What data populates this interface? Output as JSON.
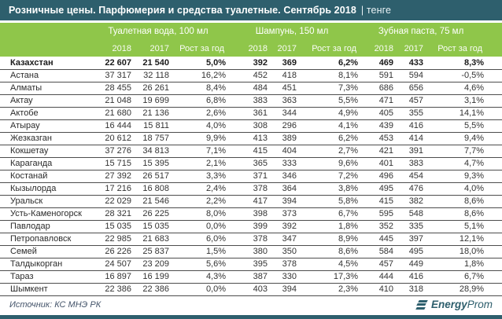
{
  "header": {
    "title_main": "Розничные цены. Парфюмерия и средства туалетные. Сентябрь 2018",
    "title_unit": "| тенге"
  },
  "table": {
    "groups": [
      "Туалетная вода, 100 мл",
      "Шампунь, 150 мл",
      "Зубная паста, 75 мл"
    ],
    "sub": [
      "2018",
      "2017",
      "Рост за год"
    ],
    "rows": [
      {
        "name": "Казахстан",
        "bold": true,
        "values": [
          "22 607",
          "21 540",
          "5,0%",
          "392",
          "369",
          "6,2%",
          "469",
          "433",
          "8,3%"
        ]
      },
      {
        "name": "Астана",
        "bold": false,
        "values": [
          "37 317",
          "32 118",
          "16,2%",
          "452",
          "418",
          "8,1%",
          "591",
          "594",
          "-0,5%"
        ]
      },
      {
        "name": "Алматы",
        "bold": false,
        "values": [
          "28 455",
          "26 261",
          "8,4%",
          "484",
          "451",
          "7,3%",
          "686",
          "656",
          "4,6%"
        ]
      },
      {
        "name": "Актау",
        "bold": false,
        "values": [
          "21 048",
          "19 699",
          "6,8%",
          "383",
          "363",
          "5,5%",
          "471",
          "457",
          "3,1%"
        ]
      },
      {
        "name": "Актобе",
        "bold": false,
        "values": [
          "21 680",
          "21 136",
          "2,6%",
          "361",
          "344",
          "4,9%",
          "405",
          "355",
          "14,1%"
        ]
      },
      {
        "name": "Атырау",
        "bold": false,
        "values": [
          "16 444",
          "15 811",
          "4,0%",
          "308",
          "296",
          "4,1%",
          "439",
          "416",
          "5,5%"
        ]
      },
      {
        "name": "Жезказган",
        "bold": false,
        "values": [
          "20 612",
          "18 757",
          "9,9%",
          "413",
          "389",
          "6,2%",
          "453",
          "414",
          "9,4%"
        ]
      },
      {
        "name": "Кокшетау",
        "bold": false,
        "values": [
          "37 276",
          "34 813",
          "7,1%",
          "415",
          "404",
          "2,7%",
          "421",
          "391",
          "7,7%"
        ]
      },
      {
        "name": "Караганда",
        "bold": false,
        "values": [
          "15 715",
          "15 395",
          "2,1%",
          "365",
          "333",
          "9,6%",
          "401",
          "383",
          "4,7%"
        ]
      },
      {
        "name": "Костанай",
        "bold": false,
        "values": [
          "27 392",
          "26 517",
          "3,3%",
          "371",
          "346",
          "7,2%",
          "496",
          "454",
          "9,3%"
        ]
      },
      {
        "name": "Кызылорда",
        "bold": false,
        "values": [
          "17 216",
          "16 808",
          "2,4%",
          "378",
          "364",
          "3,8%",
          "495",
          "476",
          "4,0%"
        ]
      },
      {
        "name": "Уральск",
        "bold": false,
        "values": [
          "22 029",
          "21 546",
          "2,2%",
          "417",
          "394",
          "5,8%",
          "415",
          "382",
          "8,6%"
        ]
      },
      {
        "name": "Усть-Каменогорск",
        "bold": false,
        "values": [
          "28 321",
          "26 225",
          "8,0%",
          "398",
          "373",
          "6,7%",
          "595",
          "548",
          "8,6%"
        ]
      },
      {
        "name": "Павлодар",
        "bold": false,
        "values": [
          "15 035",
          "15 035",
          "0,0%",
          "399",
          "392",
          "1,8%",
          "352",
          "335",
          "5,1%"
        ]
      },
      {
        "name": "Петропавловск",
        "bold": false,
        "values": [
          "22 985",
          "21 683",
          "6,0%",
          "378",
          "347",
          "8,9%",
          "445",
          "397",
          "12,1%"
        ]
      },
      {
        "name": "Семей",
        "bold": false,
        "values": [
          "26 226",
          "25 837",
          "1,5%",
          "380",
          "350",
          "8,6%",
          "584",
          "495",
          "18,0%"
        ]
      },
      {
        "name": "Талдыкорган",
        "bold": false,
        "values": [
          "24 507",
          "23 209",
          "5,6%",
          "395",
          "378",
          "4,5%",
          "457",
          "449",
          "1,8%"
        ]
      },
      {
        "name": "Тараз",
        "bold": false,
        "values": [
          "16 897",
          "16 199",
          "4,3%",
          "387",
          "330",
          "17,3%",
          "444",
          "416",
          "6,7%"
        ]
      },
      {
        "name": "Шымкент",
        "bold": false,
        "values": [
          "22 386",
          "22 386",
          "0,0%",
          "403",
          "394",
          "2,3%",
          "410",
          "318",
          "28,9%"
        ]
      }
    ]
  },
  "footer": {
    "source": "Источник: КС МНЭ РК",
    "logo_bold": "Energy",
    "logo_light": "Prom"
  },
  "colors": {
    "teal": "#2E5F6D",
    "green": "#8FC64A",
    "row_border": "#4D4D4D",
    "source_text": "#44546A"
  },
  "chart_data": {
    "type": "table",
    "title": "Розничные цены. Парфюмерия и средства туалетные. Сентябрь 2018, тенге",
    "source": "КС МНЭ РК",
    "column_groups": [
      "Туалетная вода, 100 мл",
      "Шампунь, 150 мл",
      "Зубная паста, 75 мл"
    ],
    "columns": [
      "2018",
      "2017",
      "Рост за год"
    ],
    "regions": [
      "Казахстан",
      "Астана",
      "Алматы",
      "Актау",
      "Актобе",
      "Атырау",
      "Жезказган",
      "Кокшетау",
      "Караганда",
      "Костанай",
      "Кызылорда",
      "Уральск",
      "Усть-Каменогорск",
      "Павлодар",
      "Петропавловск",
      "Семей",
      "Талдыкорган",
      "Тараз",
      "Шымкент"
    ],
    "toilet_water_100ml": {
      "y2018": [
        22607,
        37317,
        28455,
        21048,
        21680,
        16444,
        20612,
        37276,
        15715,
        27392,
        17216,
        22029,
        28321,
        15035,
        22985,
        26226,
        24507,
        16897,
        22386
      ],
      "y2017": [
        21540,
        32118,
        26261,
        19699,
        21136,
        15811,
        18757,
        34813,
        15395,
        26517,
        16808,
        21546,
        26225,
        15035,
        21683,
        25837,
        23209,
        16199,
        22386
      ],
      "growth_pct": [
        5.0,
        16.2,
        8.4,
        6.8,
        2.6,
        4.0,
        9.9,
        7.1,
        2.1,
        3.3,
        2.4,
        2.2,
        8.0,
        0.0,
        6.0,
        1.5,
        5.6,
        4.3,
        0.0
      ]
    },
    "shampoo_150ml": {
      "y2018": [
        392,
        452,
        484,
        383,
        361,
        308,
        413,
        415,
        365,
        371,
        378,
        417,
        398,
        399,
        378,
        380,
        395,
        387,
        403
      ],
      "y2017": [
        369,
        418,
        451,
        363,
        344,
        296,
        389,
        404,
        333,
        346,
        364,
        394,
        373,
        392,
        347,
        350,
        378,
        330,
        394
      ],
      "growth_pct": [
        6.2,
        8.1,
        7.3,
        5.5,
        4.9,
        4.1,
        6.2,
        2.7,
        9.6,
        7.2,
        3.8,
        5.8,
        6.7,
        1.8,
        8.9,
        8.6,
        4.5,
        17.3,
        2.3
      ]
    },
    "toothpaste_75ml": {
      "y2018": [
        469,
        591,
        686,
        471,
        405,
        439,
        453,
        421,
        401,
        496,
        495,
        415,
        595,
        352,
        445,
        584,
        457,
        444,
        410
      ],
      "y2017": [
        433,
        594,
        656,
        457,
        355,
        416,
        414,
        391,
        383,
        454,
        476,
        382,
        548,
        335,
        397,
        495,
        449,
        416,
        318
      ],
      "growth_pct": [
        8.3,
        -0.5,
        4.6,
        3.1,
        14.1,
        5.5,
        9.4,
        7.7,
        4.7,
        9.3,
        4.0,
        8.6,
        8.6,
        5.1,
        12.1,
        18.0,
        1.8,
        6.7,
        28.9
      ]
    }
  }
}
